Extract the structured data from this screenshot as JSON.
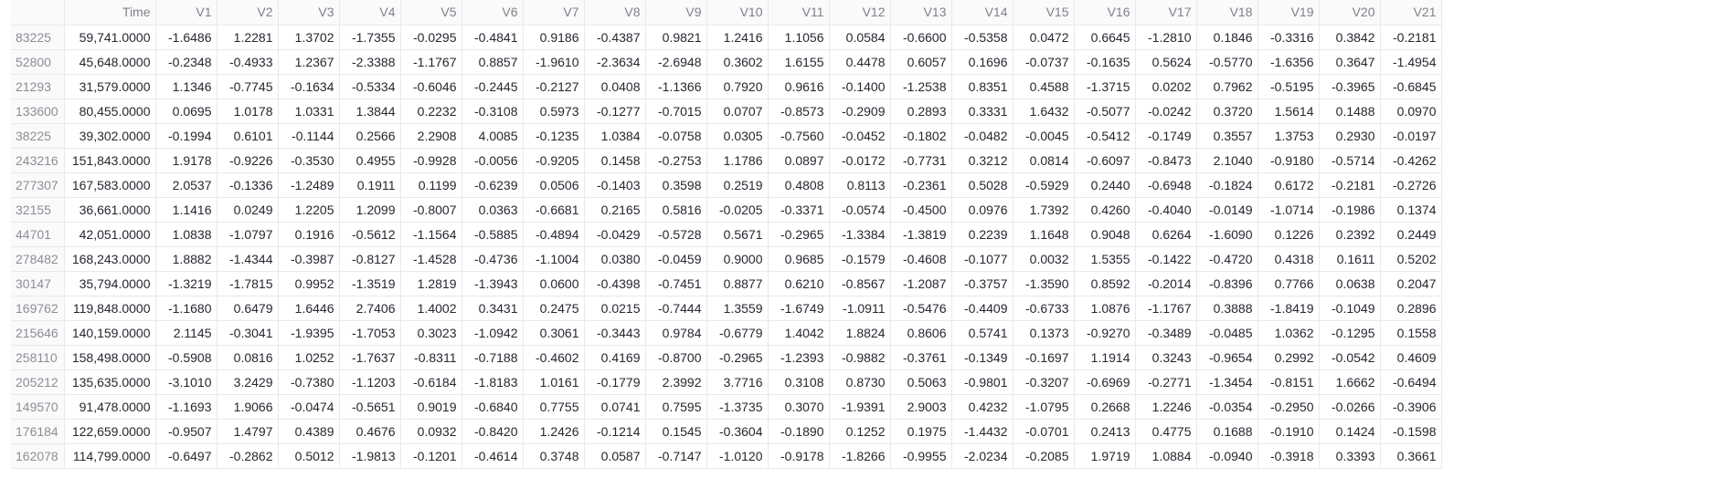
{
  "table": {
    "columns": [
      "",
      "Time",
      "V1",
      "V2",
      "V3",
      "V4",
      "V5",
      "V6",
      "V7",
      "V8",
      "V9",
      "V10",
      "V11",
      "V12",
      "V13",
      "V14",
      "V15",
      "V16",
      "V17",
      "V18",
      "V19",
      "V20",
      "V21"
    ],
    "rows": [
      [
        "83225",
        "59,741.0000",
        "-1.6486",
        "1.2281",
        "1.3702",
        "-1.7355",
        "-0.0295",
        "-0.4841",
        "0.9186",
        "-0.4387",
        "0.9821",
        "1.2416",
        "1.1056",
        "0.0584",
        "-0.6600",
        "-0.5358",
        "0.0472",
        "0.6645",
        "-1.2810",
        "0.1846",
        "-0.3316",
        "0.3842",
        "-0.2181"
      ],
      [
        "52800",
        "45,648.0000",
        "-0.2348",
        "-0.4933",
        "1.2367",
        "-2.3388",
        "-1.1767",
        "0.8857",
        "-1.9610",
        "-2.3634",
        "-2.6948",
        "0.3602",
        "1.6155",
        "0.4478",
        "0.6057",
        "0.1696",
        "-0.0737",
        "-0.1635",
        "0.5624",
        "-0.5770",
        "-1.6356",
        "0.3647",
        "-1.4954"
      ],
      [
        "21293",
        "31,579.0000",
        "1.1346",
        "-0.7745",
        "-0.1634",
        "-0.5334",
        "-0.6046",
        "-0.2445",
        "-0.2127",
        "0.0408",
        "-1.1366",
        "0.7920",
        "0.9616",
        "-0.1400",
        "-1.2538",
        "0.8351",
        "0.4588",
        "-1.3715",
        "0.0202",
        "0.7962",
        "-0.5195",
        "-0.3965",
        "-0.6845"
      ],
      [
        "133600",
        "80,455.0000",
        "0.0695",
        "1.0178",
        "1.0331",
        "1.3844",
        "0.2232",
        "-0.3108",
        "0.5973",
        "-0.1277",
        "-0.7015",
        "0.0707",
        "-0.8573",
        "-0.2909",
        "0.2893",
        "0.3331",
        "1.6432",
        "-0.5077",
        "-0.0242",
        "0.3720",
        "1.5614",
        "0.1488",
        "0.0970"
      ],
      [
        "38225",
        "39,302.0000",
        "-0.1994",
        "0.6101",
        "-0.1144",
        "0.2566",
        "2.2908",
        "4.0085",
        "-0.1235",
        "1.0384",
        "-0.0758",
        "0.0305",
        "-0.7560",
        "-0.0452",
        "-0.1802",
        "-0.0482",
        "-0.0045",
        "-0.5412",
        "-0.1749",
        "0.3557",
        "1.3753",
        "0.2930",
        "-0.0197"
      ],
      [
        "243216",
        "151,843.0000",
        "1.9178",
        "-0.9226",
        "-0.3530",
        "0.4955",
        "-0.9928",
        "-0.0056",
        "-0.9205",
        "0.1458",
        "-0.2753",
        "1.1786",
        "0.0897",
        "-0.0172",
        "-0.7731",
        "0.3212",
        "0.0814",
        "-0.6097",
        "-0.8473",
        "2.1040",
        "-0.9180",
        "-0.5714",
        "-0.4262"
      ],
      [
        "277307",
        "167,583.0000",
        "2.0537",
        "-0.1336",
        "-1.2489",
        "0.1911",
        "0.1199",
        "-0.6239",
        "0.0506",
        "-0.1403",
        "0.3598",
        "0.2519",
        "0.4808",
        "0.8113",
        "-0.2361",
        "0.5028",
        "-0.5929",
        "0.2440",
        "-0.6948",
        "-0.1824",
        "0.6172",
        "-0.2181",
        "-0.2726"
      ],
      [
        "32155",
        "36,661.0000",
        "1.1416",
        "0.0249",
        "1.2205",
        "1.2099",
        "-0.8007",
        "0.0363",
        "-0.6681",
        "0.2165",
        "0.5816",
        "-0.0205",
        "-0.3371",
        "-0.0574",
        "-0.4500",
        "0.0976",
        "1.7392",
        "0.4260",
        "-0.4040",
        "-0.0149",
        "-1.0714",
        "-0.1986",
        "0.1374"
      ],
      [
        "44701",
        "42,051.0000",
        "1.0838",
        "-1.0797",
        "0.1916",
        "-0.5612",
        "-1.1564",
        "-0.5885",
        "-0.4894",
        "-0.0429",
        "-0.5728",
        "0.5671",
        "-0.2965",
        "-1.3384",
        "-1.3819",
        "0.2239",
        "1.1648",
        "0.9048",
        "0.6264",
        "-1.6090",
        "0.1226",
        "0.2392",
        "0.2449"
      ],
      [
        "278482",
        "168,243.0000",
        "1.8882",
        "-1.4344",
        "-0.3987",
        "-0.8127",
        "-1.4528",
        "-0.4736",
        "-1.1004",
        "0.0380",
        "-0.0459",
        "0.9000",
        "0.9685",
        "-0.1579",
        "-0.4608",
        "-0.1077",
        "0.0032",
        "1.5355",
        "-0.1422",
        "-0.4720",
        "0.4318",
        "0.1611",
        "0.5202"
      ],
      [
        "30147",
        "35,794.0000",
        "-1.3219",
        "-1.7815",
        "0.9952",
        "-1.3519",
        "1.2819",
        "-1.3943",
        "0.0600",
        "-0.4398",
        "-0.7451",
        "0.8877",
        "0.6210",
        "-0.8567",
        "-1.2087",
        "-0.3757",
        "-1.3590",
        "0.8592",
        "-0.2014",
        "-0.8396",
        "0.7766",
        "0.0638",
        "0.2047"
      ],
      [
        "169762",
        "119,848.0000",
        "-1.1680",
        "0.6479",
        "1.6446",
        "2.7406",
        "1.4002",
        "0.3431",
        "0.2475",
        "0.0215",
        "-0.7444",
        "1.3559",
        "-1.6749",
        "-1.0911",
        "-0.5476",
        "-0.4409",
        "-0.6733",
        "1.0876",
        "-1.1767",
        "0.3888",
        "-1.8419",
        "-0.1049",
        "0.2896"
      ],
      [
        "215646",
        "140,159.0000",
        "2.1145",
        "-0.3041",
        "-1.9395",
        "-1.7053",
        "0.3023",
        "-1.0942",
        "0.3061",
        "-0.3443",
        "0.9784",
        "-0.6779",
        "1.4042",
        "1.8824",
        "0.8606",
        "0.5741",
        "0.1373",
        "-0.9270",
        "-0.3489",
        "-0.0485",
        "1.0362",
        "-0.1295",
        "0.1558"
      ],
      [
        "258110",
        "158,498.0000",
        "-0.5908",
        "0.0816",
        "1.0252",
        "-1.7637",
        "-0.8311",
        "-0.7188",
        "-0.4602",
        "0.4169",
        "-0.8700",
        "-0.2965",
        "-1.2393",
        "-0.9882",
        "-0.3761",
        "-0.1349",
        "-0.1697",
        "1.1914",
        "0.3243",
        "-0.9654",
        "0.2992",
        "-0.0542",
        "0.4609"
      ],
      [
        "205212",
        "135,635.0000",
        "-3.1010",
        "3.2429",
        "-0.7380",
        "-1.1203",
        "-0.6184",
        "-1.8183",
        "1.0161",
        "-0.1779",
        "2.3992",
        "3.7716",
        "0.3108",
        "0.8730",
        "0.5063",
        "-0.9801",
        "-0.3207",
        "-0.6969",
        "-0.2771",
        "-1.3454",
        "-0.8151",
        "1.6662",
        "-0.6494"
      ],
      [
        "149570",
        "91,478.0000",
        "-1.1693",
        "1.9066",
        "-0.0474",
        "-0.5651",
        "0.9019",
        "-0.6840",
        "0.7755",
        "0.0741",
        "0.7595",
        "-1.3735",
        "0.3070",
        "-1.9391",
        "2.9003",
        "0.4232",
        "-1.0795",
        "0.2668",
        "1.2246",
        "-0.0354",
        "-0.2950",
        "-0.0266",
        "-0.3906"
      ],
      [
        "176184",
        "122,659.0000",
        "-0.9507",
        "1.4797",
        "0.4389",
        "0.4676",
        "0.0932",
        "-0.8420",
        "1.2426",
        "-0.1214",
        "0.1545",
        "-0.3604",
        "-0.1890",
        "0.1252",
        "0.1975",
        "-1.4432",
        "-0.0701",
        "0.2413",
        "0.4775",
        "0.1688",
        "-0.1910",
        "0.1424",
        "-0.1598"
      ],
      [
        "162078",
        "114,799.0000",
        "-0.6497",
        "-0.2862",
        "0.5012",
        "-1.9813",
        "-0.1201",
        "-0.4614",
        "0.3748",
        "0.0587",
        "-0.7147",
        "-1.0120",
        "-0.9178",
        "-1.8266",
        "-0.9955",
        "-2.0234",
        "-0.2085",
        "1.9719",
        "1.0884",
        "-0.0940",
        "-0.3918",
        "0.3393",
        "0.3661"
      ]
    ]
  }
}
